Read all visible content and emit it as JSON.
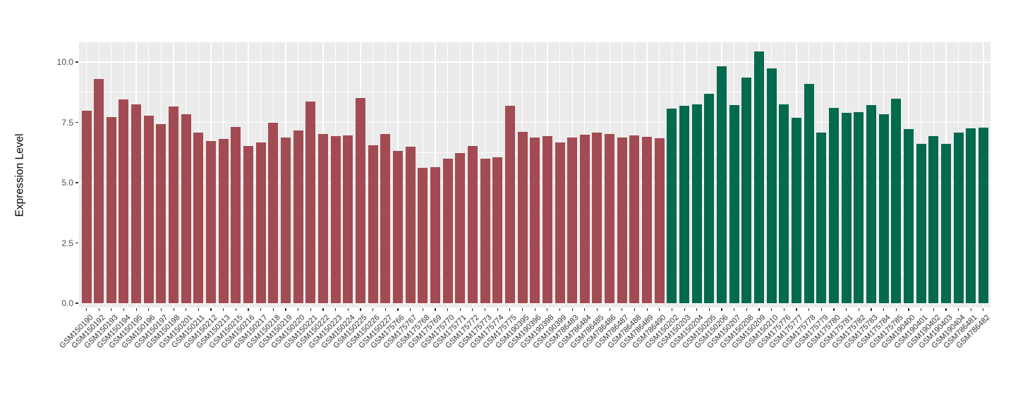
{
  "chart_data": {
    "type": "bar",
    "title": "",
    "xlabel": "",
    "ylabel": "Expression Level",
    "ylim": [
      0,
      10.9
    ],
    "ytick_labels": [
      "0.0",
      "2.5",
      "5.0",
      "7.5",
      "10.0"
    ],
    "ytick_values": [
      0,
      2.5,
      5,
      7.5,
      10
    ],
    "grid": "on",
    "legend": "none",
    "panel_background": "#EBEBEB",
    "grid_color": "#FFFFFF",
    "group_colors": {
      "group1": "#A34B53",
      "group2": "#046A4D"
    },
    "group_sizes": {
      "group1": 47,
      "group2": 26
    },
    "categories": [
      "GSM150190",
      "GSM150192",
      "GSM150193",
      "GSM150194",
      "GSM150195",
      "GSM150196",
      "GSM150197",
      "GSM150198",
      "GSM150201",
      "GSM150211",
      "GSM150212",
      "GSM150213",
      "GSM150215",
      "GSM150216",
      "GSM150217",
      "GSM150218",
      "GSM150219",
      "GSM150220",
      "GSM150221",
      "GSM150222",
      "GSM150223",
      "GSM150224",
      "GSM150225",
      "GSM150226",
      "GSM150227",
      "GSM175766",
      "GSM175767",
      "GSM175768",
      "GSM175769",
      "GSM175770",
      "GSM175771",
      "GSM175772",
      "GSM175773",
      "GSM175774",
      "GSM175775",
      "GSM190395",
      "GSM190396",
      "GSM190398",
      "GSM190399",
      "GSM786483",
      "GSM786484",
      "GSM786485",
      "GSM786486",
      "GSM786487",
      "GSM786488",
      "GSM786489",
      "GSM786490",
      "GSM150202",
      "GSM150203",
      "GSM150204",
      "GSM150205",
      "GSM150206",
      "GSM150207",
      "GSM150208",
      "GSM150209",
      "GSM150210",
      "GSM175776",
      "GSM175777",
      "GSM175778",
      "GSM175779",
      "GSM175780",
      "GSM175781",
      "GSM175782",
      "GSM175783",
      "GSM175784",
      "GSM175785",
      "GSM190400",
      "GSM190401",
      "GSM190402",
      "GSM190403",
      "GSM190404",
      "GSM786481",
      "GSM786482"
    ],
    "values": [
      7.99,
      9.3,
      7.71,
      8.46,
      8.25,
      7.77,
      7.44,
      8.17,
      7.85,
      7.09,
      6.73,
      6.8,
      7.3,
      6.52,
      6.68,
      7.48,
      6.86,
      7.16,
      8.36,
      7.01,
      6.94,
      6.97,
      8.52,
      6.54,
      7.01,
      6.33,
      6.48,
      5.61,
      5.64,
      5.98,
      6.22,
      6.51,
      5.98,
      6.05,
      8.19,
      7.11,
      6.86,
      6.92,
      6.68,
      6.86,
      6.99,
      7.07,
      7.02,
      6.87,
      6.97,
      6.9,
      6.85,
      8.07,
      8.19,
      8.26,
      8.67,
      9.83,
      8.22,
      9.37,
      10.43,
      9.73,
      8.25,
      7.68,
      9.08,
      7.07,
      8.09,
      7.89,
      7.92,
      8.23,
      7.83,
      8.48,
      7.23,
      6.62,
      6.92,
      6.62,
      7.09,
      7.24,
      7.27
    ]
  }
}
